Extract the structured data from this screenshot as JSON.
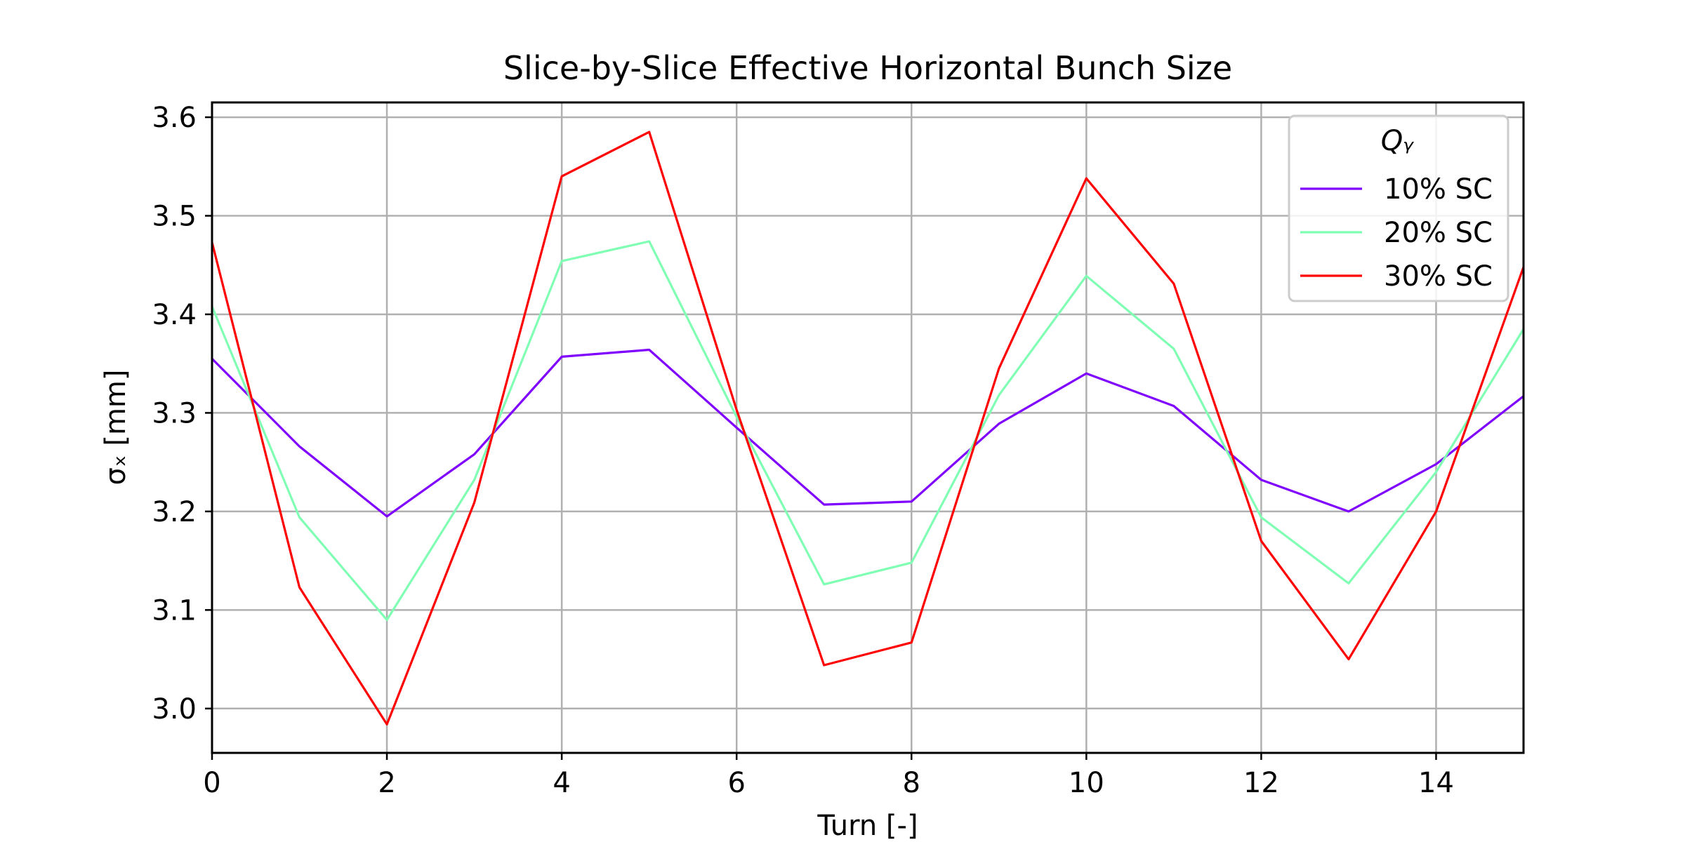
{
  "chart_data": {
    "type": "line",
    "title": "Slice-by-Slice Effective Horizontal Bunch Size",
    "xlabel": "Turn [-]",
    "ylabel": "σₓ [mm]",
    "xlim": [
      0,
      15
    ],
    "ylim": [
      2.955,
      3.615
    ],
    "xticks": [
      0,
      2,
      4,
      6,
      8,
      10,
      12,
      14
    ],
    "yticks": [
      3.0,
      3.1,
      3.2,
      3.3,
      3.4,
      3.5,
      3.6
    ],
    "ytick_labels": [
      "3.0",
      "3.1",
      "3.2",
      "3.3",
      "3.4",
      "3.5",
      "3.6"
    ],
    "grid": true,
    "legend": {
      "title": "Qᵧ",
      "placement": "top-right"
    },
    "x": [
      0,
      1,
      2,
      3,
      4,
      5,
      6,
      7,
      8,
      9,
      10,
      11,
      12,
      13,
      14,
      15
    ],
    "series": [
      {
        "name": "10% SC",
        "color": "#7f00ff",
        "values": [
          3.355,
          3.266,
          3.195,
          3.258,
          3.357,
          3.364,
          3.285,
          3.207,
          3.21,
          3.289,
          3.34,
          3.307,
          3.232,
          3.2,
          3.248,
          3.317
        ]
      },
      {
        "name": "20% SC",
        "color": "#80ffb4",
        "values": [
          3.408,
          3.194,
          3.09,
          3.232,
          3.454,
          3.474,
          3.296,
          3.126,
          3.148,
          3.318,
          3.439,
          3.365,
          3.194,
          3.127,
          3.24,
          3.385
        ]
      },
      {
        "name": "30% SC",
        "color": "#ff0000",
        "values": [
          3.473,
          3.123,
          2.984,
          3.209,
          3.54,
          3.585,
          3.303,
          3.044,
          3.067,
          3.345,
          3.538,
          3.431,
          3.17,
          3.05,
          3.2,
          3.448
        ]
      }
    ]
  }
}
